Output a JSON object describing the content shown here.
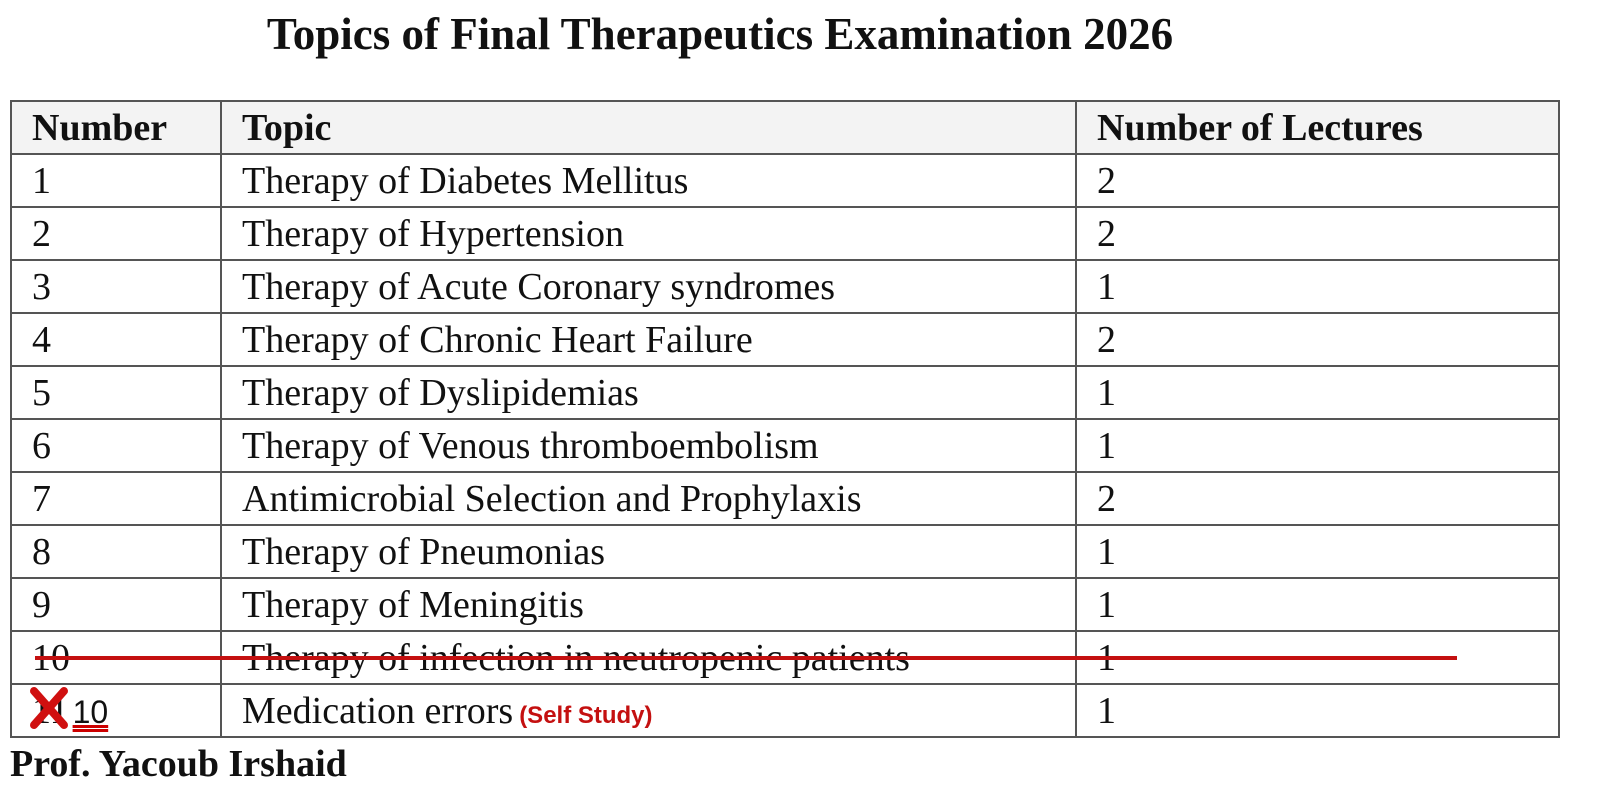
{
  "title": "Topics of Final Therapeutics Examination 2026",
  "table": {
    "header": [
      "Number",
      "Topic",
      "Number of Lectures"
    ],
    "rows": [
      [
        "1",
        "Therapy of Diabetes Mellitus",
        "2"
      ],
      [
        "2",
        "Therapy of Hypertension",
        "2"
      ],
      [
        "3",
        "Therapy of Acute Coronary syndromes",
        "1"
      ],
      [
        "4",
        "Therapy of Chronic Heart Failure",
        "2"
      ],
      [
        "5",
        "Therapy of Dyslipidemias",
        "1"
      ],
      [
        "6",
        "Therapy of Venous thromboembolism",
        "1"
      ],
      [
        "7",
        "Antimicrobial Selection and Prophylaxis",
        "2"
      ],
      [
        "8",
        "Therapy of Pneumonias",
        "1"
      ],
      [
        "9",
        "Therapy of Meningitis",
        "1"
      ],
      [
        "10",
        "Therapy of infection in neutropenic patients",
        "1"
      ],
      [
        "11",
        "Medication errors",
        "1"
      ]
    ]
  },
  "annotations": {
    "renumbered": "10",
    "note": "(Self Study)"
  },
  "author": "Prof. Yacoub Irshaid"
}
